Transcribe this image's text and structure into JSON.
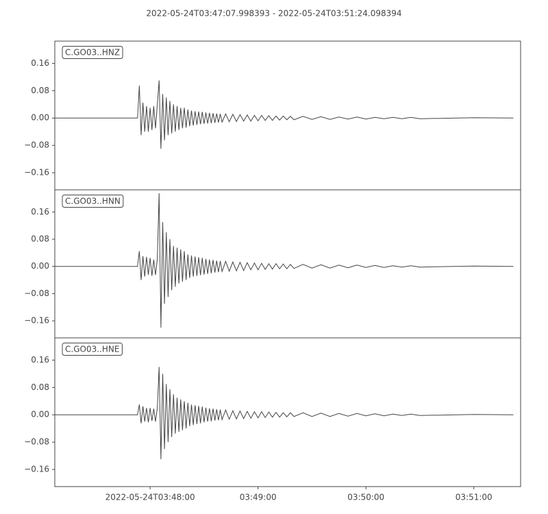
{
  "chart_data": {
    "type": "line",
    "title": "2022-05-24T03:47:07.998393  -  2022-05-24T03:51:24.098394",
    "color": "#444444",
    "xlim": [
      "2022-05-24T03:47:07",
      "2022-05-24T03:51:26"
    ],
    "ylim": [
      -0.21,
      0.225
    ],
    "yticks": [
      {
        "value": -0.16,
        "label": "−0.16"
      },
      {
        "value": -0.08,
        "label": "−0.08"
      },
      {
        "value": 0,
        "label": "0.00"
      },
      {
        "value": 0.08,
        "label": "0.08"
      },
      {
        "value": 0.16,
        "label": "0.16"
      }
    ],
    "xticks": [
      "2022-05-24T03:48:00",
      {
        "value": "2022-05-24T03:49:00",
        "label": "03:49:00"
      },
      {
        "value": "2022-05-24T03:50:00",
        "label": "03:50:00"
      },
      {
        "value": "2022-05-24T03:51:00",
        "label": "03:51:00"
      }
    ],
    "x": [
      "2022-05-24T03:47:07",
      "2022-05-24T03:47:53",
      "2022-05-24T03:47:54",
      "2022-05-24T03:47:55",
      "2022-05-24T03:47:56",
      "2022-05-24T03:47:57",
      "2022-05-24T03:47:58",
      "2022-05-24T03:47:59",
      "2022-05-24T03:48:00",
      "2022-05-24T03:48:01",
      "2022-05-24T03:48:02",
      "2022-05-24T03:48:03",
      "2022-05-24T03:48:04",
      "2022-05-24T03:48:05",
      "2022-05-24T03:48:06",
      "2022-05-24T03:48:07",
      "2022-05-24T03:48:08",
      "2022-05-24T03:48:09",
      "2022-05-24T03:48:10",
      "2022-05-24T03:48:11",
      "2022-05-24T03:48:12",
      "2022-05-24T03:48:13",
      "2022-05-24T03:48:14",
      "2022-05-24T03:48:15",
      "2022-05-24T03:48:16",
      "2022-05-24T03:48:17",
      "2022-05-24T03:48:18",
      "2022-05-24T03:48:19",
      "2022-05-24T03:48:20",
      "2022-05-24T03:48:21",
      "2022-05-24T03:48:22",
      "2022-05-24T03:48:23",
      "2022-05-24T03:48:24",
      "2022-05-24T03:48:25",
      "2022-05-24T03:48:26",
      "2022-05-24T03:48:27",
      "2022-05-24T03:48:28",
      "2022-05-24T03:48:29",
      "2022-05-24T03:48:30",
      "2022-05-24T03:48:31",
      "2022-05-24T03:48:32",
      "2022-05-24T03:48:33",
      "2022-05-24T03:48:34",
      "2022-05-24T03:48:35",
      "2022-05-24T03:48:36",
      "2022-05-24T03:48:37",
      "2022-05-24T03:48:38",
      "2022-05-24T03:48:39",
      "2022-05-24T03:48:40",
      "2022-05-24T03:48:42",
      "2022-05-24T03:48:44",
      "2022-05-24T03:48:46",
      "2022-05-24T03:48:48",
      "2022-05-24T03:48:50",
      "2022-05-24T03:48:52",
      "2022-05-24T03:48:54",
      "2022-05-24T03:48:56",
      "2022-05-24T03:48:58",
      "2022-05-24T03:49:00",
      "2022-05-24T03:49:02",
      "2022-05-24T03:49:04",
      "2022-05-24T03:49:06",
      "2022-05-24T03:49:08",
      "2022-05-24T03:49:10",
      "2022-05-24T03:49:12",
      "2022-05-24T03:49:14",
      "2022-05-24T03:49:16",
      "2022-05-24T03:49:18",
      "2022-05-24T03:49:20",
      "2022-05-24T03:49:25",
      "2022-05-24T03:49:30",
      "2022-05-24T03:49:35",
      "2022-05-24T03:49:40",
      "2022-05-24T03:49:45",
      "2022-05-24T03:49:50",
      "2022-05-24T03:49:55",
      "2022-05-24T03:50:00",
      "2022-05-24T03:50:05",
      "2022-05-24T03:50:10",
      "2022-05-24T03:50:15",
      "2022-05-24T03:50:20",
      "2022-05-24T03:50:25",
      "2022-05-24T03:50:30",
      "2022-05-24T03:51:00",
      "2022-05-24T03:51:22"
    ],
    "series": [
      {
        "name": "C.GO03..HNZ",
        "values": [
          0,
          0,
          0.095,
          -0.05,
          0.045,
          -0.04,
          0.035,
          -0.04,
          0.03,
          -0.035,
          0.035,
          -0.03,
          0.04,
          0.11,
          -0.09,
          0.07,
          -0.065,
          0.06,
          -0.05,
          0.05,
          -0.045,
          0.04,
          -0.04,
          0.035,
          -0.035,
          0.03,
          -0.03,
          0.03,
          -0.028,
          0.025,
          -0.024,
          0.022,
          -0.022,
          0.02,
          -0.02,
          0.019,
          -0.018,
          0.018,
          -0.017,
          0.016,
          -0.016,
          0.015,
          -0.015,
          0.014,
          -0.014,
          0.013,
          -0.013,
          0.012,
          -0.012,
          0.012,
          -0.011,
          0.011,
          -0.01,
          0.01,
          -0.009,
          0.009,
          -0.009,
          0.008,
          -0.008,
          0.008,
          -0.007,
          0.007,
          -0.007,
          0.006,
          -0.006,
          0.006,
          -0.005,
          0.005,
          -0.005,
          0.005,
          -0.004,
          0.004,
          -0.004,
          0.003,
          -0.003,
          0.003,
          -0.003,
          0.002,
          -0.002,
          0.002,
          -0.002,
          0.002,
          -0.002,
          0.001,
          0
        ]
      },
      {
        "name": "C.GO03..HNN",
        "values": [
          0,
          0,
          0.045,
          -0.04,
          0.03,
          -0.03,
          0.028,
          -0.025,
          0.025,
          -0.028,
          0.02,
          -0.025,
          0.022,
          0.215,
          -0.18,
          0.13,
          -0.11,
          0.1,
          -0.09,
          0.08,
          -0.07,
          0.06,
          -0.06,
          0.055,
          -0.05,
          0.05,
          -0.045,
          0.045,
          -0.04,
          0.035,
          -0.034,
          0.032,
          -0.03,
          0.029,
          -0.028,
          0.027,
          -0.026,
          0.025,
          -0.024,
          0.022,
          -0.022,
          0.02,
          -0.02,
          0.019,
          -0.018,
          0.017,
          -0.017,
          0.016,
          -0.015,
          0.015,
          -0.014,
          0.013,
          -0.013,
          0.012,
          -0.012,
          0.011,
          -0.01,
          0.01,
          -0.01,
          0.009,
          -0.009,
          0.008,
          -0.008,
          0.008,
          -0.007,
          0.007,
          -0.007,
          0.006,
          -0.006,
          0.006,
          -0.005,
          0.005,
          -0.005,
          0.004,
          -0.004,
          0.004,
          -0.003,
          0.003,
          -0.003,
          0.002,
          -0.002,
          0.002,
          -0.002,
          0.001,
          0
        ]
      },
      {
        "name": "C.GO03..HNE",
        "values": [
          0,
          0,
          0.03,
          -0.025,
          0.025,
          -0.02,
          0.02,
          -0.022,
          0.02,
          -0.018,
          0.018,
          -0.02,
          0.02,
          0.14,
          -0.13,
          0.12,
          -0.1,
          0.09,
          -0.08,
          0.075,
          -0.065,
          0.06,
          -0.055,
          0.05,
          -0.05,
          0.045,
          -0.045,
          0.04,
          -0.04,
          0.035,
          -0.033,
          0.03,
          -0.03,
          0.028,
          -0.027,
          0.026,
          -0.025,
          0.024,
          -0.022,
          0.021,
          -0.02,
          0.019,
          -0.019,
          0.018,
          -0.017,
          0.016,
          -0.016,
          0.015,
          -0.014,
          0.014,
          -0.013,
          0.012,
          -0.012,
          0.011,
          -0.011,
          0.01,
          -0.01,
          0.009,
          -0.009,
          0.009,
          -0.008,
          0.008,
          -0.007,
          0.007,
          -0.007,
          0.006,
          -0.006,
          0.006,
          -0.005,
          0.006,
          -0.005,
          0.005,
          -0.005,
          0.004,
          -0.004,
          0.004,
          -0.003,
          0.003,
          -0.003,
          0.002,
          -0.002,
          0.002,
          -0.002,
          0.001,
          0
        ]
      }
    ]
  }
}
